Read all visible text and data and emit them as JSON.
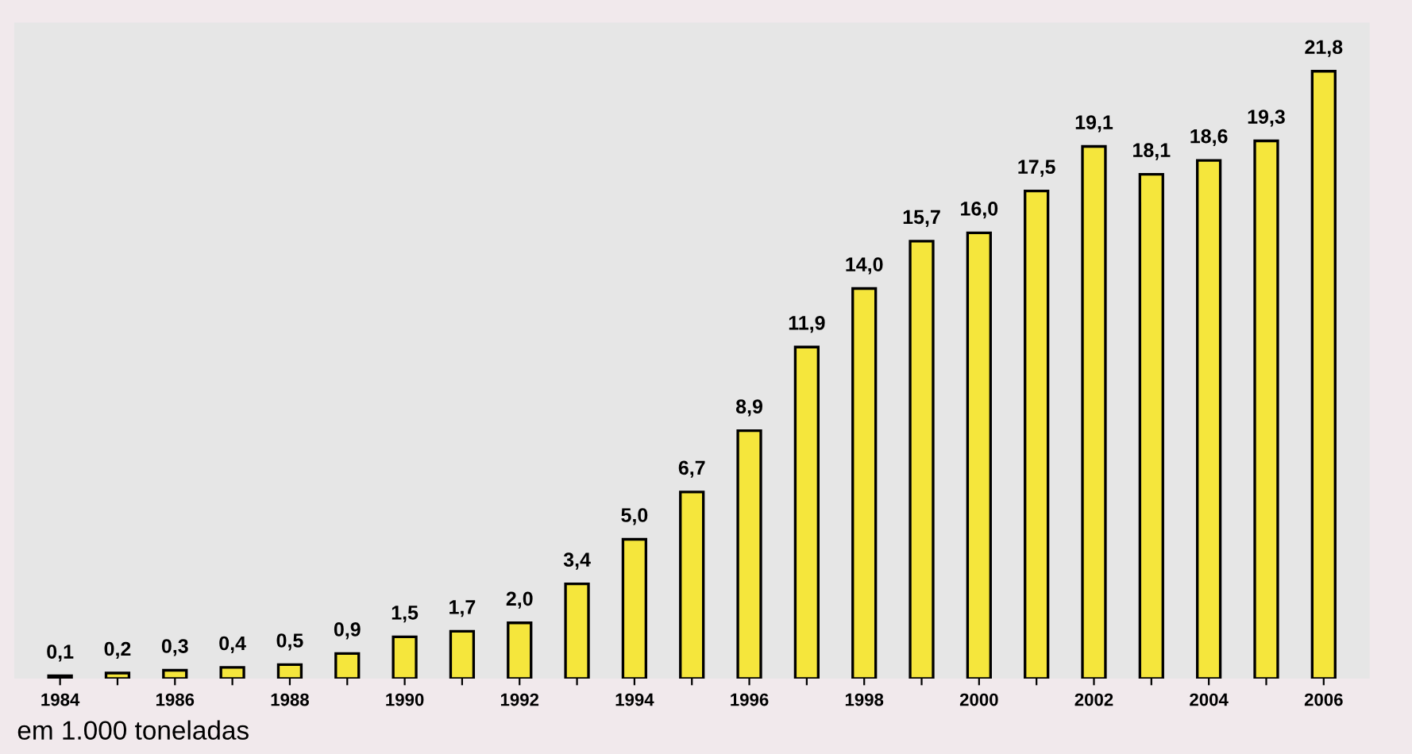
{
  "chart_data": {
    "type": "bar",
    "categories": [
      "1984",
      null,
      "1986",
      null,
      "1988",
      null,
      "1990",
      null,
      "1992",
      null,
      "1994",
      null,
      "1996",
      null,
      "1998",
      null,
      "2000",
      null,
      "2002",
      null,
      "2004",
      null,
      "2006"
    ],
    "values": [
      0.1,
      0.2,
      0.3,
      0.4,
      0.5,
      0.9,
      1.5,
      1.7,
      2.0,
      3.4,
      5.0,
      6.7,
      8.9,
      11.9,
      14.0,
      15.7,
      16.0,
      17.5,
      19.1,
      18.1,
      18.6,
      19.3,
      21.8
    ],
    "value_labels": [
      "0,1",
      "0,2",
      "0,3",
      "0,4",
      "0,5",
      "0,9",
      "1,5",
      "1,7",
      "2,0",
      "3,4",
      "5,0",
      "6,7",
      "8,9",
      "11,9",
      "14,0",
      "15,7",
      "16,0",
      "17,5",
      "19,1",
      "18,1",
      "18,6",
      "19,3",
      "21,8"
    ],
    "color": "#f5e63c",
    "annotations": [
      "em 1.000 toneladas"
    ],
    "tick_labels": "x",
    "grid": false,
    "legend": false
  }
}
